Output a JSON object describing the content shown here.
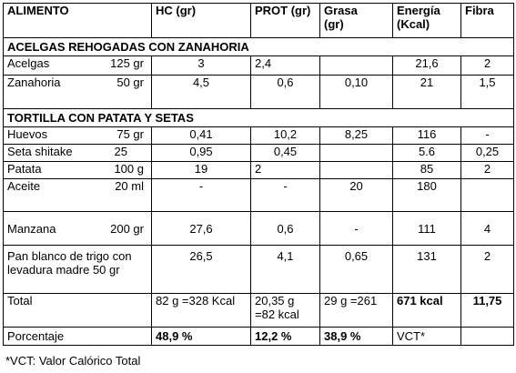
{
  "header": {
    "alimento": "ALIMENTO",
    "hc": "HC (gr)",
    "prot": "PROT (gr)",
    "grasa": "Grasa\n(gr)",
    "energia": "Energía\n(Kcal)",
    "fibra": "Fibra"
  },
  "sections": {
    "acelgas": "ACELGAS REHOGADAS CON ZANAHORIA",
    "tortilla": "TORTILLA CON PATATA Y SETAS"
  },
  "rows": [
    {
      "name": "Acelgas",
      "grams": "125 gr",
      "hc": "3",
      "prot": "2,4",
      "grasa": "",
      "energia": "21,6",
      "fibra": "2"
    },
    {
      "name": "Zanahoria",
      "grams": "50 gr",
      "hc": "4,5",
      "prot": "0,6",
      "grasa": "0,10",
      "energia": "21",
      "fibra": "1,5"
    },
    {
      "name": "Huevos",
      "grams": "75 gr",
      "hc": "0,41",
      "prot": "10,2",
      "grasa": "8,25",
      "energia": "116",
      "fibra": "-"
    },
    {
      "name": "Seta shitake",
      "grams": "25",
      "hc": "0,95",
      "prot": "0,45",
      "grasa": "",
      "energia": "5.6",
      "fibra": "0,25"
    },
    {
      "name": "Patata",
      "grams": "100 g",
      "hc": "19",
      "prot": "2",
      "grasa": "",
      "energia": "85",
      "fibra": "2"
    },
    {
      "name": "Aceite",
      "grams": "20 ml",
      "hc": "-",
      "prot": "-",
      "grasa": "20",
      "energia": "180",
      "fibra": ""
    },
    {
      "name": "Manzana",
      "grams": "200 gr",
      "hc": "27,6",
      "prot": "0,6",
      "grasa": "-",
      "energia": "111",
      "fibra": "4"
    },
    {
      "name": "Pan blanco de trigo con levadura madre 50 gr",
      "grams": "",
      "hc": "26,5",
      "prot": "4,1",
      "grasa": "0,65",
      "energia": "131",
      "fibra": "2"
    }
  ],
  "total": {
    "label": "Total",
    "hc": "82 g =328 Kcal",
    "prot": "20,35 g\n=82 kcal",
    "grasa": "29 g =261",
    "energia": "671 kcal",
    "fibra": "11,75"
  },
  "porcentaje": {
    "label": "Porcentaje",
    "hc": "48,9 %",
    "prot": "12,2 %",
    "grasa": "38,9 %",
    "energia": "VCT*",
    "fibra": ""
  },
  "footnote": "*VCT: Valor Calórico Total"
}
